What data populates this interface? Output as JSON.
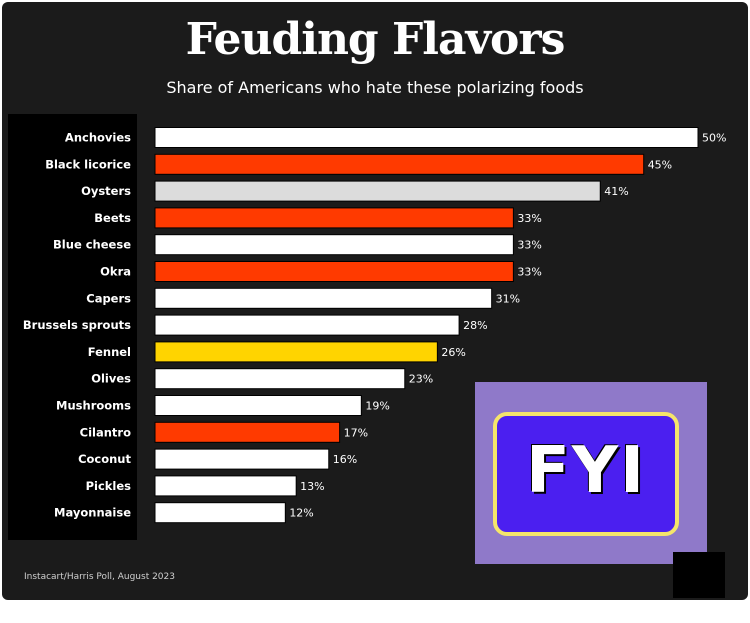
{
  "header": {
    "title": "Feuding Flavors",
    "subtitle": "Share of Americans who hate these polarizing foods"
  },
  "source": "Instacart/Harris Poll, August 2023",
  "logo": {
    "text": "FYI"
  },
  "colors": {
    "background": "#1b1b1b",
    "white": "#ffffff",
    "gray": "#dcdcdc",
    "red": "#ff3a00",
    "yellow": "#ffd400"
  },
  "chart_data": {
    "type": "bar",
    "orientation": "horizontal",
    "title": "Feuding Flavors",
    "subtitle": "Share of Americans who hate these polarizing foods",
    "categories": [
      "Anchovies",
      "Black licorice",
      "Oysters",
      "Beets",
      "Blue cheese",
      "Okra",
      "Capers",
      "Brussels sprouts",
      "Fennel",
      "Olives",
      "Mushrooms",
      "Cilantro",
      "Coconut",
      "Pickles",
      "Mayonnaise"
    ],
    "values": [
      50,
      45,
      41,
      33,
      33,
      33,
      31,
      28,
      26,
      23,
      19,
      17,
      16,
      13,
      12
    ],
    "value_labels": [
      "50%",
      "45%",
      "41%",
      "33%",
      "33%",
      "33%",
      "31%",
      "28%",
      "26%",
      "23%",
      "19%",
      "17%",
      "16%",
      "13%",
      "12%"
    ],
    "bar_colors": [
      "#ffffff",
      "#ff3a00",
      "#dcdcdc",
      "#ff3a00",
      "#ffffff",
      "#ff3a00",
      "#ffffff",
      "#ffffff",
      "#ffd400",
      "#ffffff",
      "#ffffff",
      "#ff3a00",
      "#ffffff",
      "#ffffff",
      "#ffffff"
    ],
    "xlim": [
      0,
      50
    ],
    "grid": false,
    "legend": "none"
  }
}
